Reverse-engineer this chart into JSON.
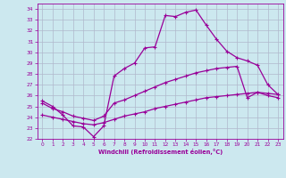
{
  "xlabel": "Windchill (Refroidissement éolien,°C)",
  "background_color": "#cce8ef",
  "line_color": "#990099",
  "grid_color": "#b0b8cc",
  "ylim": [
    22,
    34.5
  ],
  "xlim": [
    -0.5,
    23.5
  ],
  "yticks": [
    22,
    23,
    24,
    25,
    26,
    27,
    28,
    29,
    30,
    31,
    32,
    33,
    34
  ],
  "xticks": [
    0,
    1,
    2,
    3,
    4,
    5,
    6,
    7,
    8,
    9,
    10,
    11,
    12,
    13,
    14,
    15,
    16,
    17,
    18,
    19,
    20,
    21,
    22,
    23
  ],
  "line1_x": [
    0,
    1,
    2,
    3,
    4,
    5,
    6,
    7,
    8,
    9,
    10,
    11,
    12,
    13,
    14,
    15,
    16,
    17,
    18,
    19,
    20,
    21,
    22,
    23
  ],
  "line1_y": [
    25.5,
    25.0,
    24.2,
    23.2,
    23.1,
    22.2,
    23.2,
    27.8,
    28.5,
    29.0,
    30.4,
    30.5,
    33.4,
    33.3,
    33.7,
    33.9,
    32.5,
    31.2,
    30.1,
    29.5,
    29.2,
    28.8,
    27.0,
    26.1
  ],
  "line2_x": [
    0,
    1,
    2,
    3,
    4,
    5,
    6,
    7,
    8,
    9,
    10,
    11,
    12,
    13,
    14,
    15,
    16,
    17,
    18,
    19,
    20,
    21,
    22,
    23
  ],
  "line2_y": [
    25.3,
    24.8,
    24.5,
    24.1,
    23.9,
    23.7,
    24.1,
    25.3,
    25.6,
    26.0,
    26.4,
    26.8,
    27.2,
    27.5,
    27.8,
    28.1,
    28.3,
    28.5,
    28.6,
    28.7,
    25.8,
    26.3,
    26.2,
    26.1
  ],
  "line3_x": [
    0,
    1,
    2,
    3,
    4,
    5,
    6,
    7,
    8,
    9,
    10,
    11,
    12,
    13,
    14,
    15,
    16,
    17,
    18,
    19,
    20,
    21,
    22,
    23
  ],
  "line3_y": [
    24.2,
    24.0,
    23.8,
    23.6,
    23.4,
    23.3,
    23.5,
    23.8,
    24.1,
    24.3,
    24.5,
    24.8,
    25.0,
    25.2,
    25.4,
    25.6,
    25.8,
    25.9,
    26.0,
    26.1,
    26.2,
    26.3,
    26.0,
    25.8
  ]
}
